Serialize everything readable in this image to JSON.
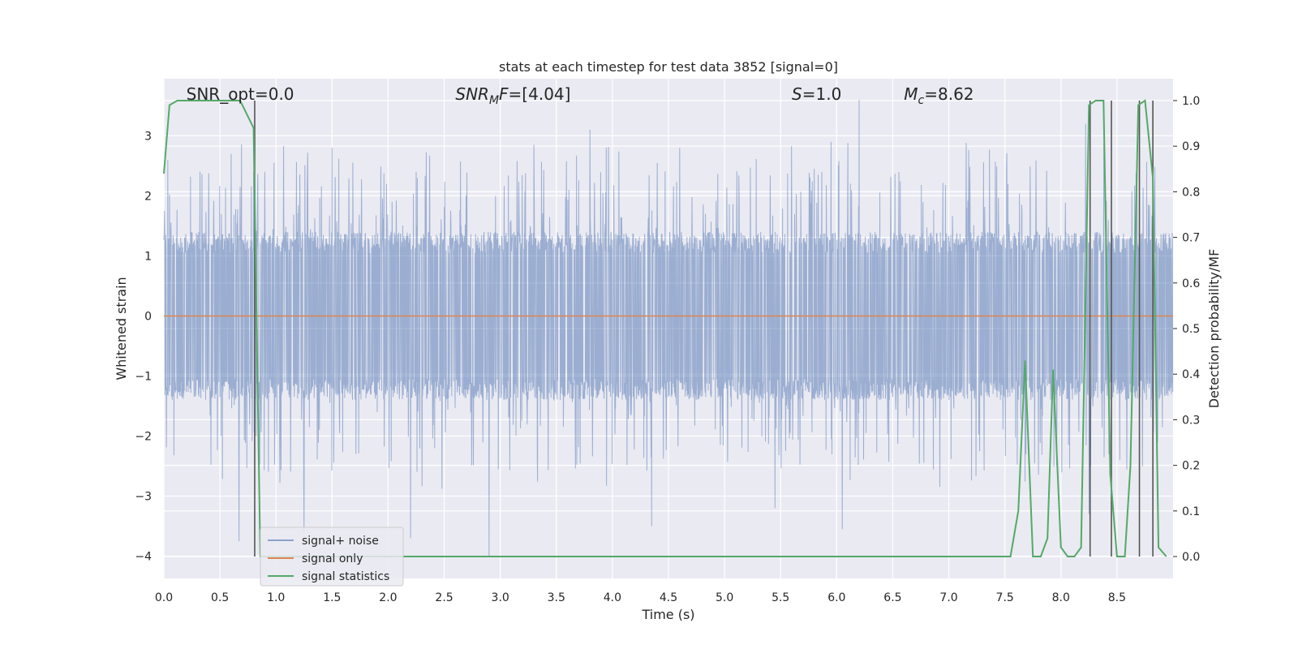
{
  "chart_data": {
    "type": "line",
    "title": "stats at each timestep for test data 3852 [signal=0]",
    "xlabel": "Time (s)",
    "ylabel": "Whitened strain",
    "y2label": "Detection probability/MF",
    "xlim": [
      0.0,
      9.0
    ],
    "ylim": [
      -4.37,
      3.95
    ],
    "y2lim": [
      -0.048,
      1.048
    ],
    "x_ticks": [
      0.0,
      0.5,
      1.0,
      1.5,
      2.0,
      2.5,
      3.0,
      3.5,
      4.0,
      4.5,
      5.0,
      5.5,
      6.0,
      6.5,
      7.0,
      7.5,
      8.0,
      8.5
    ],
    "x_tick_labels": [
      "0.0",
      "0.5",
      "1.0",
      "1.5",
      "2.0",
      "2.5",
      "3.0",
      "3.5",
      "4.0",
      "4.5",
      "5.0",
      "5.5",
      "6.0",
      "6.5",
      "7.0",
      "7.5",
      "8.0",
      "8.5"
    ],
    "y_ticks": [
      -4,
      -3,
      -2,
      -1,
      0,
      1,
      2,
      3
    ],
    "y_tick_labels": [
      "−4",
      "−3",
      "−2",
      "−1",
      "0",
      "1",
      "2",
      "3"
    ],
    "y2_ticks": [
      0.0,
      0.1,
      0.2,
      0.3,
      0.4,
      0.5,
      0.6,
      0.7,
      0.8,
      0.9,
      1.0
    ],
    "y2_tick_labels": [
      "0.0",
      "0.1",
      "0.2",
      "0.3",
      "0.4",
      "0.5",
      "0.6",
      "0.7",
      "0.8",
      "0.9",
      "1.0"
    ],
    "grid": true,
    "legend_position": "lower-left",
    "annotations": [
      {
        "text": "SNR_opt=0.0",
        "x": 0.2
      },
      {
        "text": "SNR_MF=[4.04]",
        "x": 2.6,
        "math": "snr_mf"
      },
      {
        "text": "S=1.0",
        "x": 5.6,
        "math": "s"
      },
      {
        "text": "M_c=8.62",
        "x": 6.6,
        "math": "mc"
      }
    ],
    "detection_lines_x": [
      0.81,
      8.26,
      8.45,
      8.7,
      8.82
    ],
    "series": [
      {
        "name": "signal+ noise",
        "color": "#4c72b0",
        "axis": "left",
        "style": "noise",
        "envelope": {
          "typical_abs": 1.4,
          "peak_max": 3.6,
          "peak_min": -4.0,
          "peaks": [
            [
              0.6,
              2.7
            ],
            [
              0.67,
              -3.75
            ],
            [
              0.9,
              2.4
            ],
            [
              1.25,
              -3.6
            ],
            [
              1.5,
              2.8
            ],
            [
              2.2,
              -3.7
            ],
            [
              2.9,
              -4.0
            ],
            [
              3.3,
              2.85
            ],
            [
              3.8,
              3.1
            ],
            [
              4.35,
              -3.5
            ],
            [
              4.6,
              2.8
            ],
            [
              5.45,
              -3.2
            ],
            [
              5.95,
              2.9
            ],
            [
              6.05,
              -3.55
            ],
            [
              6.2,
              3.6
            ],
            [
              8.22,
              3.2
            ],
            [
              8.25,
              -3.3
            ]
          ]
        }
      },
      {
        "name": "signal only",
        "color": "#dd8452",
        "axis": "left",
        "x": [
          0.0,
          9.0
        ],
        "y": [
          0.0,
          0.0
        ]
      },
      {
        "name": "signal statistics",
        "color": "#55a868",
        "axis": "right",
        "x": [
          0.0,
          0.05,
          0.12,
          0.5,
          0.68,
          0.8,
          0.86,
          0.9,
          1.0,
          7.55,
          7.62,
          7.68,
          7.75,
          7.82,
          7.88,
          7.93,
          8.0,
          8.06,
          8.12,
          8.18,
          8.25,
          8.31,
          8.38,
          8.44,
          8.5,
          8.57,
          8.62,
          8.69,
          8.75,
          8.82,
          8.87,
          8.94
        ],
        "y": [
          0.84,
          0.99,
          1.0,
          1.0,
          1.0,
          0.94,
          0.0,
          0.0,
          0.0,
          0.0,
          0.1,
          0.43,
          0.0,
          0.0,
          0.04,
          0.41,
          0.02,
          0.0,
          0.0,
          0.02,
          0.99,
          1.0,
          1.0,
          0.18,
          0.0,
          0.0,
          0.2,
          0.99,
          1.0,
          0.83,
          0.02,
          0.0
        ]
      }
    ]
  }
}
